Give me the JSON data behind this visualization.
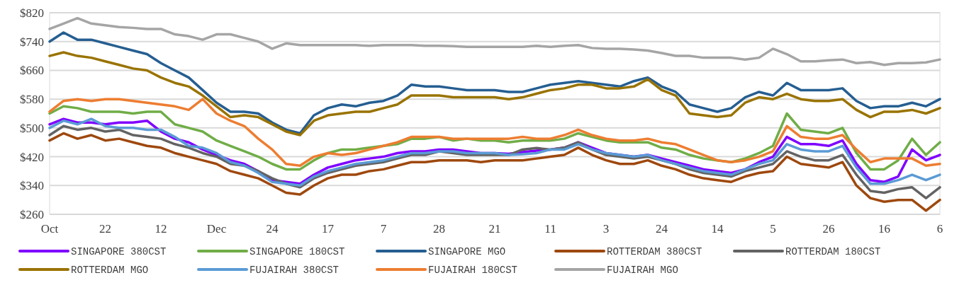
{
  "chart_data": {
    "type": "line",
    "categories": [
      "Oct",
      null,
      null,
      null,
      "22",
      null,
      null,
      null,
      "12",
      null,
      null,
      null,
      "Dec",
      null,
      null,
      null,
      "24",
      null,
      null,
      null,
      "17",
      null,
      null,
      null,
      "7",
      null,
      null,
      null,
      "28",
      null,
      null,
      null,
      "21",
      null,
      null,
      null,
      "11",
      null,
      null,
      null,
      "3",
      null,
      null,
      null,
      "24",
      null,
      null,
      null,
      "14",
      null,
      null,
      null,
      "5",
      null,
      null,
      null,
      "26",
      null,
      null,
      null,
      "16",
      null,
      null,
      null,
      "6"
    ],
    "ylim": [
      260,
      820
    ],
    "yticks": [
      {
        "value": 260,
        "label": "$260"
      },
      {
        "value": 340,
        "label": "$340"
      },
      {
        "value": 420,
        "label": "$420"
      },
      {
        "value": 500,
        "label": "$500"
      },
      {
        "value": 580,
        "label": "$580"
      },
      {
        "value": 660,
        "label": "$660"
      },
      {
        "value": 740,
        "label": "$740"
      },
      {
        "value": 820,
        "label": "$820"
      }
    ],
    "grid": "y",
    "legend": "bottom",
    "marker": "none",
    "line_style": "solid",
    "series": [
      {
        "name": "SINGAPORE 380CST",
        "color": "#7f00ff",
        "values": [
          510,
          525,
          515,
          515,
          510,
          515,
          515,
          520,
          490,
          470,
          460,
          440,
          425,
          410,
          400,
          380,
          355,
          350,
          345,
          370,
          390,
          400,
          410,
          415,
          420,
          430,
          435,
          435,
          440,
          440,
          435,
          430,
          430,
          428,
          433,
          437,
          440,
          445,
          460,
          445,
          430,
          425,
          420,
          425,
          415,
          405,
          395,
          385,
          380,
          375,
          385,
          405,
          420,
          475,
          455,
          455,
          450,
          465,
          400,
          355,
          350,
          365,
          440,
          410,
          425
        ]
      },
      {
        "name": "SINGAPORE 180CST",
        "color": "#70ad47",
        "values": [
          540,
          560,
          555,
          545,
          545,
          545,
          540,
          545,
          545,
          510,
          500,
          490,
          465,
          450,
          435,
          420,
          400,
          385,
          385,
          410,
          430,
          440,
          440,
          445,
          450,
          455,
          470,
          470,
          475,
          465,
          470,
          465,
          465,
          460,
          465,
          465,
          465,
          470,
          485,
          475,
          465,
          460,
          460,
          460,
          445,
          440,
          425,
          415,
          410,
          405,
          415,
          430,
          450,
          540,
          495,
          490,
          485,
          500,
          430,
          385,
          385,
          410,
          470,
          425,
          460
        ]
      },
      {
        "name": "SINGAPORE MGO",
        "color": "#255e91",
        "values": [
          740,
          765,
          745,
          745,
          735,
          725,
          715,
          705,
          680,
          660,
          640,
          605,
          570,
          545,
          545,
          540,
          515,
          495,
          485,
          535,
          555,
          565,
          560,
          570,
          575,
          590,
          620,
          615,
          615,
          610,
          605,
          605,
          605,
          600,
          600,
          610,
          620,
          625,
          630,
          625,
          620,
          615,
          630,
          640,
          615,
          600,
          565,
          555,
          545,
          555,
          585,
          600,
          590,
          625,
          605,
          605,
          605,
          610,
          575,
          555,
          560,
          560,
          570,
          560,
          580
        ]
      },
      {
        "name": "ROTTERDAM 380CST",
        "color": "#9e480e",
        "values": [
          465,
          485,
          470,
          480,
          465,
          470,
          460,
          450,
          445,
          430,
          420,
          410,
          400,
          380,
          370,
          360,
          340,
          320,
          315,
          340,
          360,
          370,
          370,
          380,
          385,
          395,
          405,
          405,
          410,
          410,
          410,
          405,
          410,
          410,
          410,
          415,
          420,
          425,
          445,
          425,
          410,
          400,
          400,
          410,
          395,
          385,
          370,
          360,
          355,
          350,
          365,
          375,
          380,
          420,
          400,
          395,
          390,
          405,
          340,
          305,
          295,
          300,
          300,
          270,
          300
        ]
      },
      {
        "name": "ROTTERDAM 180CST",
        "color": "#636363",
        "values": [
          480,
          505,
          495,
          500,
          490,
          495,
          480,
          475,
          470,
          455,
          445,
          430,
          420,
          400,
          395,
          380,
          360,
          345,
          335,
          360,
          375,
          385,
          395,
          400,
          405,
          415,
          425,
          425,
          435,
          430,
          425,
          425,
          425,
          425,
          440,
          444,
          440,
          445,
          460,
          440,
          425,
          420,
          415,
          420,
          410,
          400,
          385,
          375,
          370,
          365,
          380,
          390,
          400,
          435,
          420,
          410,
          410,
          425,
          370,
          325,
          320,
          330,
          335,
          305,
          335
        ]
      },
      {
        "name": "ROTTERDAM MGO",
        "color": "#997300",
        "values": [
          700,
          710,
          700,
          695,
          685,
          675,
          665,
          660,
          640,
          625,
          615,
          590,
          560,
          530,
          535,
          530,
          510,
          490,
          480,
          520,
          535,
          540,
          545,
          545,
          555,
          565,
          590,
          590,
          590,
          585,
          585,
          585,
          585,
          580,
          585,
          595,
          605,
          610,
          620,
          620,
          610,
          610,
          615,
          635,
          605,
          590,
          540,
          535,
          530,
          535,
          570,
          585,
          580,
          595,
          580,
          575,
          575,
          580,
          550,
          530,
          545,
          545,
          550,
          540,
          555
        ]
      },
      {
        "name": "FUJAIRAH 380CST",
        "color": "#5b9bd5",
        "values": [
          500,
          520,
          510,
          525,
          505,
          500,
          500,
          495,
          495,
          475,
          450,
          445,
          430,
          405,
          395,
          375,
          350,
          345,
          340,
          365,
          380,
          390,
          400,
          405,
          410,
          420,
          430,
          430,
          435,
          435,
          430,
          430,
          430,
          425,
          427,
          430,
          440,
          440,
          455,
          440,
          430,
          425,
          420,
          425,
          410,
          400,
          390,
          380,
          375,
          370,
          385,
          400,
          410,
          455,
          440,
          435,
          435,
          450,
          390,
          345,
          345,
          355,
          370,
          355,
          370
        ]
      },
      {
        "name": "FUJAIRAH 180CST",
        "color": "#ed7d31",
        "values": [
          545,
          575,
          580,
          575,
          580,
          580,
          575,
          570,
          565,
          560,
          550,
          580,
          540,
          520,
          505,
          470,
          440,
          400,
          395,
          420,
          430,
          425,
          430,
          440,
          450,
          460,
          475,
          475,
          475,
          470,
          470,
          470,
          470,
          470,
          475,
          470,
          470,
          480,
          495,
          480,
          470,
          465,
          465,
          470,
          460,
          455,
          440,
          425,
          410,
          405,
          410,
          420,
          435,
          505,
          475,
          470,
          470,
          480,
          440,
          405,
          415,
          415,
          415,
          395,
          400
        ]
      },
      {
        "name": "FUJAIRAH MGO",
        "color": "#a5a5a5",
        "values": [
          775,
          790,
          805,
          790,
          785,
          780,
          778,
          775,
          775,
          760,
          755,
          745,
          760,
          760,
          750,
          740,
          720,
          735,
          730,
          730,
          730,
          730,
          730,
          728,
          730,
          730,
          730,
          728,
          728,
          727,
          725,
          725,
          725,
          725,
          725,
          728,
          725,
          728,
          730,
          722,
          720,
          720,
          718,
          715,
          708,
          700,
          700,
          695,
          695,
          695,
          690,
          695,
          720,
          705,
          685,
          685,
          688,
          690,
          680,
          683,
          675,
          680,
          680,
          682,
          690
        ]
      }
    ]
  }
}
